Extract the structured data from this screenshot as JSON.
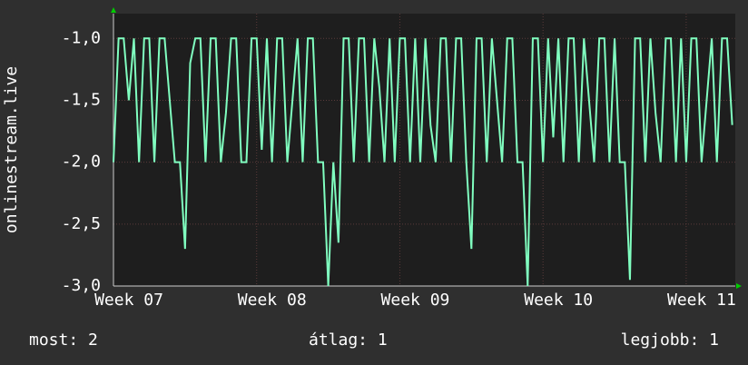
{
  "chart_data": {
    "type": "line",
    "ylabel": "onlinestream.live",
    "x": [
      0,
      0.25,
      0.5,
      0.75,
      1,
      1.25,
      1.5,
      1.75,
      2,
      2.25,
      2.5,
      2.75,
      3,
      3.25,
      3.5,
      3.75,
      4,
      4.25,
      4.5,
      4.75,
      5,
      5.25,
      5.5,
      5.75,
      6,
      6.25,
      6.5,
      6.75,
      7,
      7.25,
      7.5,
      7.75,
      8,
      8.25,
      8.5,
      8.75,
      9,
      9.25,
      9.5,
      9.75,
      10,
      10.25,
      10.5,
      10.75,
      11,
      11.25,
      11.5,
      11.75,
      12,
      12.25,
      12.5,
      12.75,
      13,
      13.25,
      13.5,
      13.75,
      14,
      14.25,
      14.5,
      14.75,
      15,
      15.25,
      15.5,
      15.75,
      16,
      16.25,
      16.5,
      16.75,
      17,
      17.25,
      17.5,
      17.75,
      18,
      18.25,
      18.5,
      18.75,
      19,
      19.25,
      19.5,
      19.75,
      20,
      20.25,
      20.5,
      20.75,
      21,
      21.25,
      21.5,
      21.75,
      22,
      22.25,
      22.5,
      22.75,
      23,
      23.25,
      23.5,
      23.75,
      24,
      24.25,
      24.5,
      24.75,
      25,
      25.25,
      25.5,
      25.75,
      26,
      26.25,
      26.5,
      26.75,
      27,
      27.25,
      27.5,
      27.75,
      28,
      28.25,
      28.5,
      28.75,
      29,
      29.25,
      29.5,
      29.75,
      30,
      30.25
    ],
    "series": [
      {
        "color": "#80ffc0",
        "values": [
          -2,
          -1,
          -1,
          -1.5,
          -1,
          -2,
          -1,
          -1,
          -2,
          -1,
          -1,
          -1.5,
          -2,
          -2,
          -2.7,
          -1.2,
          -1,
          -1,
          -2,
          -1,
          -1,
          -2,
          -1.6,
          -1,
          -1,
          -2,
          -2,
          -1,
          -1,
          -1.9,
          -1,
          -2,
          -1,
          -1,
          -2,
          -1.5,
          -1,
          -2,
          -1,
          -1,
          -2,
          -2,
          -3,
          -2,
          -2.65,
          -1,
          -1,
          -2,
          -1,
          -1,
          -2,
          -1,
          -1.4,
          -2,
          -1,
          -2,
          -1,
          -1,
          -2,
          -1,
          -2,
          -1,
          -1.7,
          -2,
          -1,
          -1,
          -2,
          -1,
          -1,
          -2,
          -2.7,
          -1,
          -1,
          -2,
          -1,
          -1.5,
          -2,
          -1,
          -1,
          -2,
          -2,
          -3,
          -1,
          -1,
          -2,
          -1,
          -1.8,
          -1,
          -2,
          -1,
          -1,
          -2,
          -1,
          -1.5,
          -2,
          -1,
          -1,
          -2,
          -1,
          -2,
          -2,
          -2.95,
          -1,
          -1,
          -2,
          -1,
          -1.6,
          -2,
          -1,
          -1,
          -2,
          -1,
          -2,
          -1,
          -1,
          -2,
          -1.5,
          -1,
          -2,
          -1,
          -1,
          -1.7
        ]
      }
    ],
    "xlim": [
      0,
      30.4
    ],
    "xticks": [
      {
        "value": 0,
        "label": "Week 07"
      },
      {
        "value": 7,
        "label": "Week 08"
      },
      {
        "value": 14,
        "label": "Week 09"
      },
      {
        "value": 21,
        "label": "Week 10"
      },
      {
        "value": 28,
        "label": "Week 11"
      }
    ],
    "ylim": [
      -3,
      -0.8
    ],
    "yticks": [
      {
        "value": -3,
        "label": "-3,0"
      },
      {
        "value": -2.5,
        "label": "-2,5"
      },
      {
        "value": -2,
        "label": "-2,0"
      },
      {
        "value": -1.5,
        "label": "-1,5"
      },
      {
        "value": -1,
        "label": "-1,0"
      }
    ],
    "grid": true,
    "stats": [
      "most: 2",
      "átlag: 1",
      "legjobb: 1"
    ]
  }
}
